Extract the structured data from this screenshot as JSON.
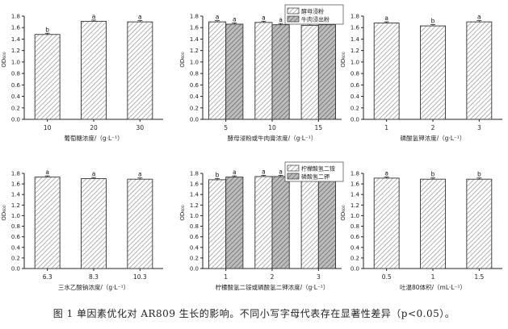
{
  "caption": "图 1  单因素优化对 AR809 生长的影响。不同小写字母代表存在显著性差异（p<0.05）。",
  "colors": {
    "bar_stroke": "#333333",
    "hatch": "#7a7a7a",
    "axis": "#222222"
  },
  "chart_data": [
    {
      "type": "bar",
      "xlabel": "葡萄糖浓度/（g·L⁻¹）",
      "ylabel": "OD₆₀₀",
      "ylim": [
        0,
        1.8
      ],
      "yticks": [
        "0.0",
        "0.2",
        "0.4",
        "0.6",
        "0.8",
        "1.0",
        "1.2",
        "1.4",
        "1.6",
        "1.8"
      ],
      "categories": [
        "10",
        "20",
        "30"
      ],
      "series": [
        {
          "values": [
            1.48,
            1.71,
            1.7
          ],
          "letters": [
            "b",
            "a",
            "a"
          ]
        }
      ]
    },
    {
      "type": "bar",
      "xlabel": "酵母浸粉或牛肉膏浓度/（g·L⁻¹）",
      "ylabel": "OD₆₀₀",
      "ylim": [
        0,
        1.8
      ],
      "yticks": [
        "0.0",
        "0.2",
        "0.4",
        "0.6",
        "0.8",
        "1.0",
        "1.2",
        "1.4",
        "1.6",
        "1.8"
      ],
      "categories": [
        "5",
        "10",
        "15"
      ],
      "legend": [
        "酵母浸粉",
        "牛肉浸出粉"
      ],
      "series": [
        {
          "name": "酵母浸粉",
          "values": [
            1.7,
            1.69,
            1.64
          ],
          "letters": [
            "a",
            "a",
            "a"
          ]
        },
        {
          "name": "牛肉浸出粉",
          "values": [
            1.66,
            1.65,
            1.65
          ],
          "letters": [
            "a",
            "a",
            "a"
          ]
        }
      ]
    },
    {
      "type": "bar",
      "xlabel": "磷酸氢钾浓度/（g·L⁻¹）",
      "ylabel": "OD₆₀₀",
      "ylim": [
        0,
        1.8
      ],
      "yticks": [
        "0.0",
        "0.2",
        "0.4",
        "0.6",
        "0.8",
        "1.0",
        "1.2",
        "1.4",
        "1.6",
        "1.8"
      ],
      "categories": [
        "1",
        "2",
        "3"
      ],
      "series": [
        {
          "values": [
            1.68,
            1.63,
            1.7
          ],
          "letters": [
            "a",
            "b",
            "a"
          ]
        }
      ]
    },
    {
      "type": "bar",
      "xlabel": "三水乙酸钠浓度/（g·L⁻¹）",
      "ylabel": "OD₆₀₀",
      "ylim": [
        0,
        1.8
      ],
      "yticks": [
        "0.0",
        "0.2",
        "0.4",
        "0.6",
        "0.8",
        "1.0",
        "1.2",
        "1.4",
        "1.6",
        "1.8"
      ],
      "categories": [
        "6.3",
        "8.3",
        "10.3"
      ],
      "series": [
        {
          "values": [
            1.73,
            1.7,
            1.69
          ],
          "letters": [
            "a",
            "a",
            "a"
          ]
        }
      ]
    },
    {
      "type": "bar",
      "xlabel": "柠檬酸氢二铵或磷酸氢二钾浓度/（g·L⁻¹）",
      "ylabel": "OD₆₀₀",
      "ylim": [
        0,
        1.8
      ],
      "yticks": [
        "0.0",
        "0.2",
        "0.4",
        "0.6",
        "0.8",
        "1.0",
        "1.2",
        "1.4",
        "1.6",
        "1.8"
      ],
      "categories": [
        "1",
        "2",
        "3"
      ],
      "legend": [
        "柠檬酸氢二铵",
        "磷酸氢二钾"
      ],
      "series": [
        {
          "name": "柠檬酸氢二铵",
          "values": [
            1.68,
            1.74,
            1.73
          ],
          "letters": [
            "b",
            "a",
            "a"
          ]
        },
        {
          "name": "磷酸氢二钾",
          "values": [
            1.73,
            1.74,
            1.69
          ],
          "letters": [
            "a",
            "a",
            "b"
          ]
        }
      ]
    },
    {
      "type": "bar",
      "xlabel": "吐温80体积/（mL·L⁻¹）",
      "ylabel": "OD₆₀₀",
      "ylim": [
        0,
        1.8
      ],
      "yticks": [
        "0.0",
        "0.2",
        "0.4",
        "0.6",
        "0.8",
        "1.0",
        "1.2",
        "1.4",
        "1.6",
        "1.8"
      ],
      "categories": [
        "0.5",
        "1",
        "1.5"
      ],
      "series": [
        {
          "values": [
            1.71,
            1.69,
            1.69
          ],
          "letters": [
            "a",
            "b",
            "b"
          ]
        }
      ]
    }
  ]
}
